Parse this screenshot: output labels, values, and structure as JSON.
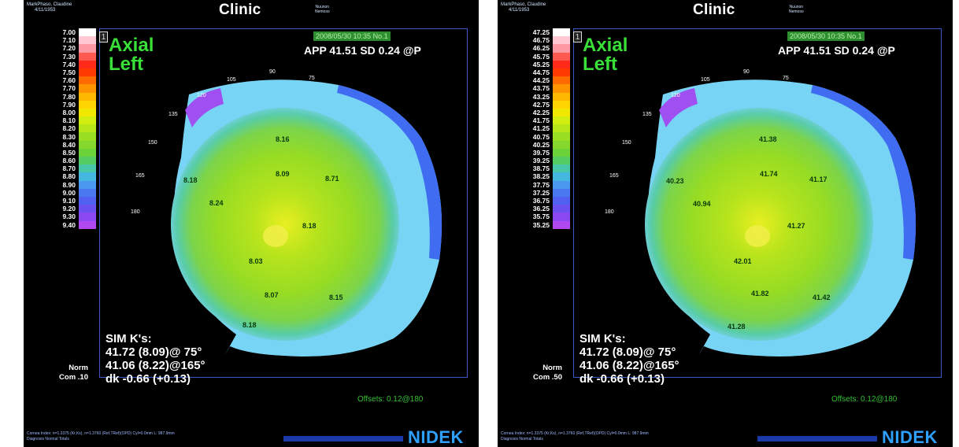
{
  "panels": [
    {
      "header_small_1": "MarkPhaso, Claudine",
      "header_small_2": "4/11/1953",
      "clinic_title": "Clinic",
      "header_right_small_1": "Nuunon",
      "header_right_small_2": "Nemoso",
      "index_box": "1",
      "map_type_1": "Axial",
      "map_type_2": "Left",
      "timestamp": "2008/05/30 10:35 No.1",
      "app_readout": "APP 41.51 SD 0.24 @P",
      "scale_labels": [
        "7.00",
        "7.10",
        "7.20",
        "7.30",
        "7.40",
        "7.50",
        "7.60",
        "7.70",
        "7.80",
        "7.90",
        "8.00",
        "8.10",
        "8.20",
        "8.30",
        "8.40",
        "8.50",
        "8.60",
        "8.70",
        "8.80",
        "8.90",
        "9.00",
        "9.10",
        "9.20",
        "9.30",
        "9.40"
      ],
      "norm_label": "Norm",
      "com_label": "Com .10",
      "sim_title": "SIM K's:",
      "sim_line1": "41.72 (8.09)@ 75°",
      "sim_line2": "41.06 (8.22)@165°",
      "sim_line3": "dk -0.66 (+0.13)",
      "offset_text": "Offsets: 0.12@180",
      "footer_1": "Cornea Index: n=1.3375 (Kr,Ks), n=1.3760 (Ref,TRef)(OPD) Cyl=0.0mm L: 987.9mm",
      "footer_2": "Diagnosis    Normal    Totals",
      "brand": "NIDEK",
      "angles": [
        "105",
        "90",
        "75",
        "120",
        "135",
        "150",
        "165",
        "180"
      ],
      "values": [
        "8.16",
        "8.18",
        "8.09",
        "8.71",
        "8.24",
        "8.18",
        "8.03",
        "8.07",
        "8.15",
        "8.18"
      ]
    },
    {
      "header_small_1": "MarkPhaso, Claudine",
      "header_small_2": "4/11/1953",
      "clinic_title": "Clinic",
      "header_right_small_1": "Nuunon",
      "header_right_small_2": "Nemoso",
      "index_box": "1",
      "map_type_1": "Axial",
      "map_type_2": "Left",
      "timestamp": "2008/05/30 10:35 No.1",
      "app_readout": "APP 41.51 SD 0.24 @P",
      "scale_labels": [
        "47.25",
        "46.75",
        "46.25",
        "45.75",
        "45.25",
        "44.75",
        "44.25",
        "43.75",
        "43.25",
        "42.75",
        "42.25",
        "41.75",
        "41.25",
        "40.75",
        "40.25",
        "39.75",
        "39.25",
        "38.75",
        "38.25",
        "37.75",
        "37.25",
        "36.75",
        "36.25",
        "35.75",
        "35.25"
      ],
      "norm_label": "Norm",
      "com_label": "Com .50",
      "sim_title": "SIM K's:",
      "sim_line1": "41.72 (8.09)@ 75°",
      "sim_line2": "41.06 (8.22)@165°",
      "sim_line3": "dk -0.66 (+0.13)",
      "offset_text": "Offsets: 0.12@180",
      "footer_1": "Cornea Index: n=1.3375 (Kr,Ks), n=1.3760 (Ref,TRef)(OPD) Cyl=0.0mm L: 987.9mm",
      "footer_2": "Diagnosis    Normal    Totals",
      "brand": "NIDEK",
      "angles": [
        "105",
        "90",
        "75",
        "120",
        "135",
        "150",
        "165",
        "180"
      ],
      "values": [
        "41.38",
        "40.23",
        "41.74",
        "41.17",
        "40.94",
        "41.27",
        "42.01",
        "41.82",
        "41.42",
        "41.28"
      ]
    }
  ],
  "colors": {
    "scale": [
      "#ffffff",
      "#ffc8d2",
      "#ff9aa4",
      "#ff5a50",
      "#ff2a1a",
      "#ff3a00",
      "#ff6a00",
      "#ff9400",
      "#ffb800",
      "#ffd400",
      "#f0e800",
      "#d2ee10",
      "#b4e618",
      "#9ade24",
      "#86d82c",
      "#6cd23a",
      "#54cc62",
      "#48c8a8",
      "#44b8e0",
      "#4a98f0",
      "#4a78f0",
      "#5060f0",
      "#6a50f0",
      "#8a48f0",
      "#b048f0"
    ],
    "accent_green": "#38e038",
    "brand_blue": "#2ea0ff"
  }
}
